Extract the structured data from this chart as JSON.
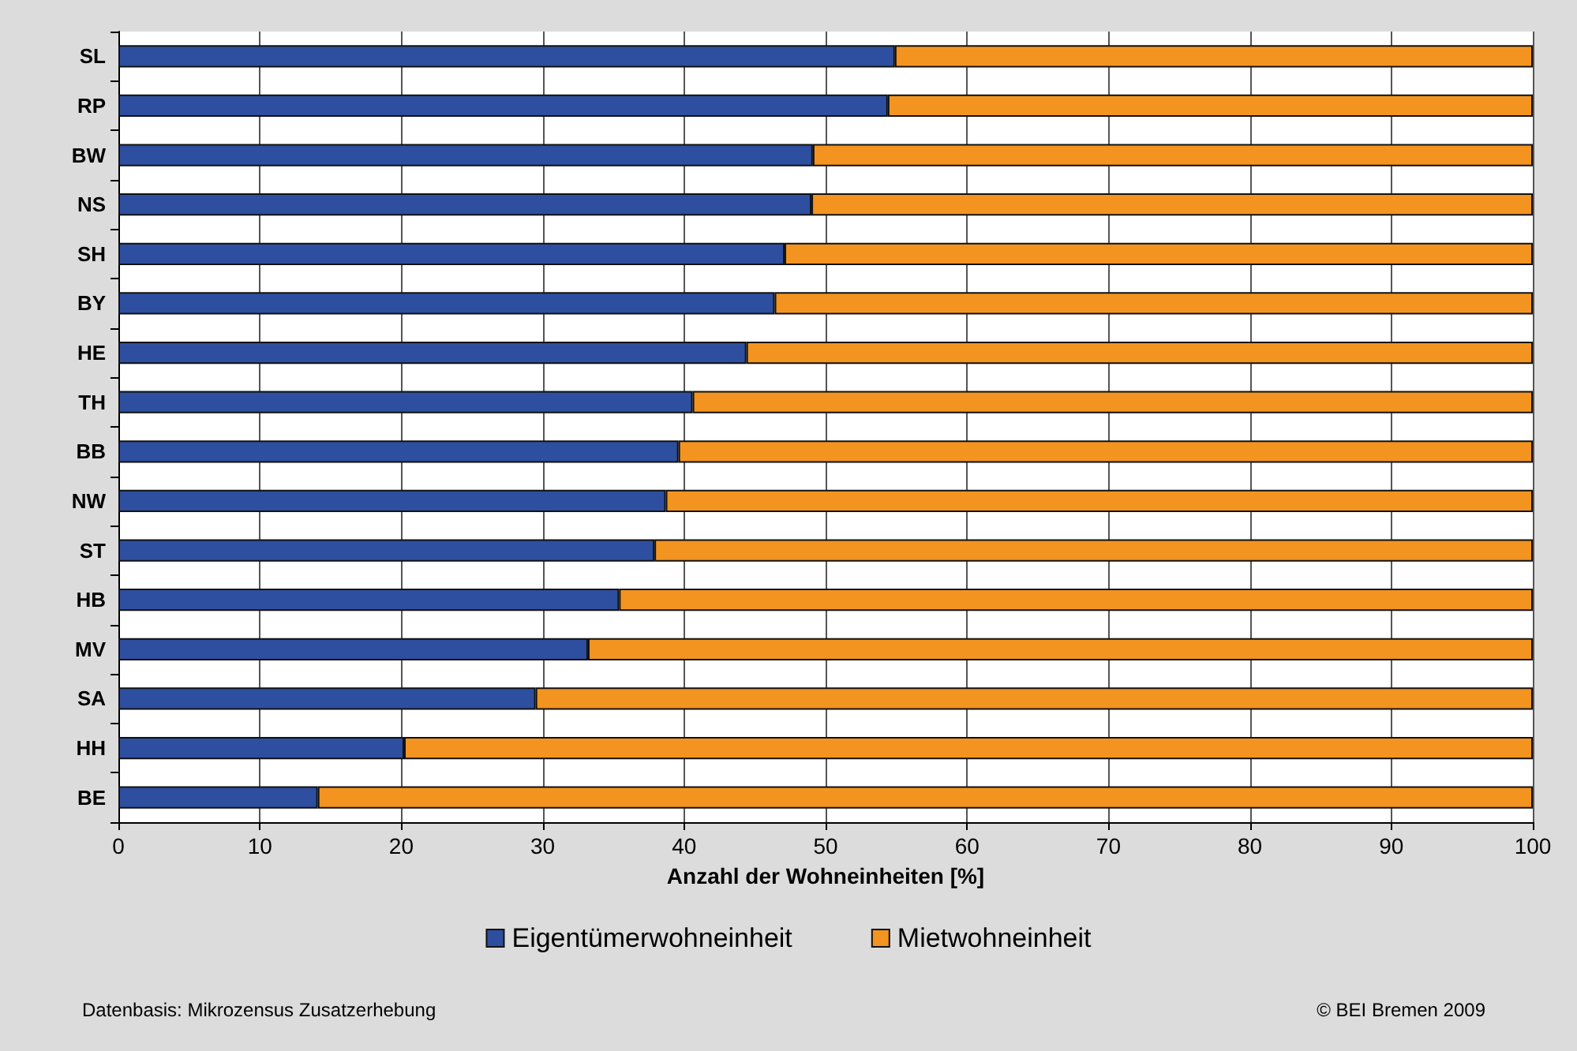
{
  "chart_data": {
    "type": "bar",
    "orientation": "horizontal",
    "stacked": true,
    "xlabel": "Anzahl der Wohneinheiten [%]",
    "categories": [
      "SL",
      "RP",
      "BW",
      "NS",
      "SH",
      "BY",
      "HE",
      "TH",
      "BB",
      "NW",
      "ST",
      "HB",
      "MV",
      "SA",
      "HH",
      "BE"
    ],
    "series": [
      {
        "name": "Eigentümerwohneinheit",
        "color": "#2e4fa0",
        "values": [
          54.9,
          54.4,
          49.1,
          49.0,
          47.1,
          46.4,
          44.4,
          40.6,
          39.6,
          38.7,
          37.9,
          35.4,
          33.2,
          29.5,
          20.2,
          14.1
        ]
      },
      {
        "name": "Mietwohneinheit",
        "color": "#f39420",
        "values": [
          45.1,
          45.6,
          50.9,
          51.0,
          52.9,
          53.6,
          55.6,
          59.4,
          60.4,
          61.3,
          62.1,
          64.6,
          66.8,
          70.5,
          79.8,
          85.9
        ]
      }
    ],
    "xlim": [
      0,
      100
    ],
    "xticks": [
      0,
      10,
      20,
      30,
      40,
      50,
      60,
      70,
      80,
      90,
      100
    ],
    "grid": "x",
    "legend": "bottom",
    "annotations": [
      "Datenbasis: Mikrozensus Zusatzerhebung",
      "© BEI Bremen 2009"
    ]
  }
}
